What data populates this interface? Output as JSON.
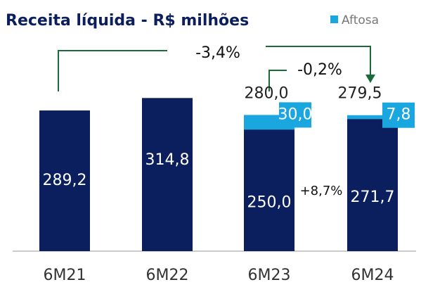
{
  "chart_data": {
    "type": "stacked_bar",
    "title": "Receita líquida - R$ milhões",
    "categories": [
      "6M21",
      "6M22",
      "6M23",
      "6M24"
    ],
    "series": [
      {
        "color": "#0b1f5e",
        "values": [
          289.2,
          314.8,
          250.0,
          271.7
        ],
        "value_labels": [
          "289,2",
          "314,8",
          "250,0",
          "271,7"
        ]
      },
      {
        "name": "Aftosa",
        "color": "#1aa6df",
        "values": [
          null,
          null,
          30.0,
          7.8
        ],
        "value_labels": [
          null,
          null,
          "30,0",
          "7,8"
        ]
      }
    ],
    "totals": {
      "values": [
        null,
        null,
        280.0,
        279.5
      ],
      "value_labels": [
        null,
        null,
        "280,0",
        "279,5"
      ]
    },
    "annotations": [
      "-3,4%",
      "-0,2%",
      "+8,7%"
    ],
    "ylim": [
      0,
      350
    ]
  }
}
